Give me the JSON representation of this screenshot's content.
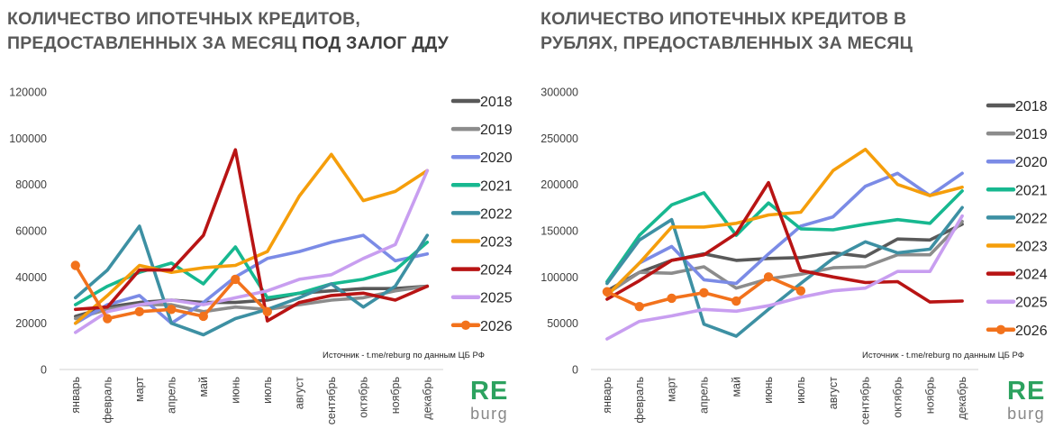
{
  "chart_data": [
    {
      "type": "line",
      "title": "КОЛИЧЕСТВО ИПОТЕЧНЫХ КРЕДИТОВ, ПРЕДОСТАВЛЕННЫХ ЗА МЕСЯЦ ПОД ЗАЛОГ ДДУ",
      "title_line1": "КОЛИЧЕСТВО ИПОТЕЧНЫХ КРЕДИТОВ,",
      "title_line2_plain": "ПРЕДОСТАВЛЕННЫХ ЗА МЕСЯЦ ",
      "title_line2_bold": "ПОД ЗАЛОГ ДДУ",
      "source": "Источник  - t.me/reburg по данным  ЦБ РФ",
      "categories": [
        "январь",
        "февраль",
        "март",
        "апрель",
        "май",
        "июнь",
        "июль",
        "август",
        "сентябрь",
        "октябрь",
        "ноябрь",
        "декабрь"
      ],
      "ylim": [
        0,
        120000
      ],
      "yticks": [
        0,
        20000,
        40000,
        60000,
        80000,
        100000,
        120000
      ],
      "ytick_labels": [
        "0",
        "20000",
        "40000",
        "60000",
        "80000",
        "100000",
        "120000"
      ],
      "legend_position": "right",
      "series": [
        {
          "name": "2018",
          "color": "#595959",
          "values": [
            23000,
            27000,
            29000,
            30000,
            29000,
            29000,
            30000,
            33000,
            34000,
            35000,
            35000,
            36000
          ]
        },
        {
          "name": "2019",
          "color": "#8c8c8c",
          "values": [
            22000,
            26000,
            28000,
            28000,
            25000,
            27000,
            26000,
            28000,
            30000,
            31000,
            34000,
            36000
          ]
        },
        {
          "name": "2020",
          "color": "#7b8be6",
          "values": [
            20000,
            28000,
            32000,
            20000,
            29000,
            40000,
            48000,
            51000,
            55000,
            58000,
            47000,
            50000
          ]
        },
        {
          "name": "2021",
          "color": "#17b890",
          "values": [
            28000,
            36000,
            42000,
            46000,
            37000,
            53000,
            31000,
            33000,
            37000,
            39000,
            43000,
            55000
          ]
        },
        {
          "name": "2022",
          "color": "#3d90a3",
          "values": [
            31000,
            43000,
            62000,
            20000,
            15000,
            22000,
            26000,
            31000,
            37000,
            27000,
            36000,
            58000
          ]
        },
        {
          "name": "2023",
          "color": "#f59e0b",
          "values": [
            20000,
            32000,
            45000,
            42000,
            44000,
            45000,
            51000,
            75000,
            93000,
            73000,
            77000,
            86000
          ]
        },
        {
          "name": "2024",
          "color": "#b81414",
          "values": [
            26000,
            27000,
            43000,
            43000,
            58000,
            95000,
            21000,
            29000,
            32000,
            33000,
            30000,
            36000
          ]
        },
        {
          "name": "2025",
          "color": "#c89ef0",
          "values": [
            16000,
            25000,
            28000,
            30000,
            28000,
            31000,
            34000,
            39000,
            41000,
            48000,
            54000,
            86000
          ]
        },
        {
          "name": "2026",
          "color": "#f2721c",
          "marker": true,
          "values": [
            45000,
            22000,
            25000,
            26000,
            23000,
            39000,
            25000,
            null,
            null,
            null,
            null,
            null
          ]
        }
      ]
    },
    {
      "type": "line",
      "title": "КОЛИЧЕСТВО ИПОТЕЧНЫХ КРЕДИТОВ В РУБЛЯХ, ПРЕДОСТАВЛЕННЫХ ЗА МЕСЯЦ",
      "title_line1": "КОЛИЧЕСТВО ИПОТЕЧНЫХ КРЕДИТОВ В",
      "title_line2_plain": "РУБЛЯХ, ПРЕДОСТАВЛЕННЫХ ЗА МЕСЯЦ",
      "title_line2_bold": "",
      "source": "Источник  - t.me/reburg по данным  ЦБ РФ",
      "categories": [
        "январь",
        "февраль",
        "март",
        "апрель",
        "май",
        "июнь",
        "июль",
        "август",
        "сентябрь",
        "октябрь",
        "ноябрь",
        "декабрь"
      ],
      "ylim": [
        0,
        300000
      ],
      "yticks": [
        0,
        50000,
        100000,
        150000,
        200000,
        250000,
        300000
      ],
      "ytick_labels": [
        "0",
        "50000",
        "100000",
        "150000",
        "200000",
        "250000",
        "300000"
      ],
      "legend_position": "right",
      "series": [
        {
          "name": "2018",
          "color": "#595959",
          "values": [
            85000,
            105000,
            118000,
            125000,
            118000,
            120000,
            121000,
            126000,
            122000,
            141000,
            140000,
            157000
          ]
        },
        {
          "name": "2019",
          "color": "#8c8c8c",
          "values": [
            82000,
            105000,
            104000,
            111000,
            88000,
            98000,
            103000,
            110000,
            111000,
            124000,
            124000,
            160000
          ]
        },
        {
          "name": "2020",
          "color": "#7b8be6",
          "values": [
            80000,
            115000,
            133000,
            97000,
            93000,
            125000,
            155000,
            165000,
            198000,
            212000,
            188000,
            212000
          ]
        },
        {
          "name": "2021",
          "color": "#17b890",
          "values": [
            95000,
            145000,
            178000,
            191000,
            145000,
            180000,
            152000,
            151000,
            157000,
            162000,
            158000,
            193000
          ]
        },
        {
          "name": "2022",
          "color": "#3d90a3",
          "values": [
            93000,
            140000,
            162000,
            49000,
            36000,
            65000,
            93000,
            120000,
            138000,
            126000,
            130000,
            175000
          ]
        },
        {
          "name": "2023",
          "color": "#f59e0b",
          "values": [
            80000,
            115000,
            154000,
            154000,
            158000,
            167000,
            170000,
            215000,
            238000,
            200000,
            188000,
            197000
          ]
        },
        {
          "name": "2024",
          "color": "#b81414",
          "values": [
            76000,
            96000,
            118000,
            124000,
            147000,
            202000,
            107000,
            100000,
            94000,
            95000,
            73000,
            74000
          ]
        },
        {
          "name": "2025",
          "color": "#c89ef0",
          "values": [
            33000,
            52000,
            58000,
            65000,
            63000,
            69000,
            78000,
            85000,
            88000,
            106000,
            106000,
            166000
          ]
        },
        {
          "name": "2026",
          "color": "#f2721c",
          "marker": true,
          "values": [
            84000,
            68000,
            77000,
            83000,
            74000,
            100000,
            85000,
            null,
            null,
            null,
            null,
            null
          ]
        }
      ]
    }
  ],
  "logo": {
    "line1": "RE",
    "line2": "burg"
  }
}
